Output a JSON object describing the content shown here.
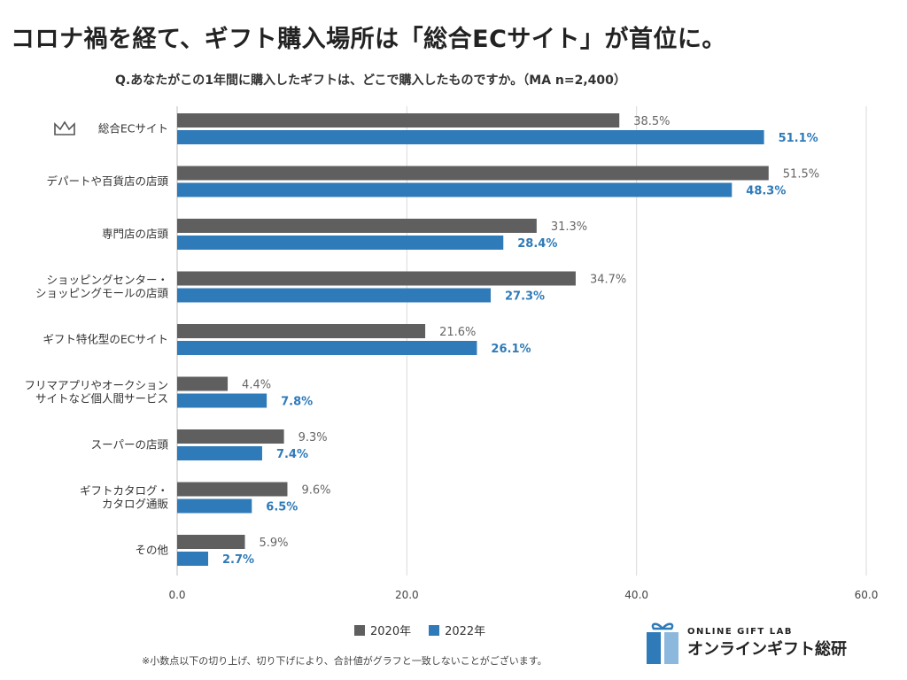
{
  "headline": "コロナ禍を経て、ギフト購入場所は「総合ECサイト」が首位に。",
  "chart_data": {
    "type": "bar",
    "orientation": "horizontal",
    "question": "Q.あなたがこの1年間に購入したギフトは、どこで購入したものですか。（MA n=2,400）",
    "categories": [
      [
        "総合ECサイト"
      ],
      [
        "デパートや百貨店の店頭"
      ],
      [
        "専門店の店頭"
      ],
      [
        "ショッピングセンター・",
        "ショッピングモールの店頭"
      ],
      [
        "ギフト特化型のECサイト"
      ],
      [
        "フリマアプリやオークション",
        "サイトなど個人間サービス"
      ],
      [
        "スーパーの店頭"
      ],
      [
        "ギフトカタログ・",
        "カタログ通販"
      ],
      [
        "その他"
      ]
    ],
    "series": [
      {
        "name": "2020年",
        "color": "#5f5f5f",
        "values": [
          38.5,
          51.5,
          31.3,
          34.7,
          21.6,
          4.4,
          9.3,
          9.6,
          5.9
        ],
        "labels": [
          "38.5%",
          "51.5%",
          "31.3%",
          "34.7%",
          "21.6%",
          "4.4%",
          "9.3%",
          "9.6%",
          "5.9%"
        ]
      },
      {
        "name": "2022年",
        "color": "#2f7ab8",
        "values": [
          51.1,
          48.3,
          28.4,
          27.3,
          26.1,
          7.8,
          7.4,
          6.5,
          2.7
        ],
        "labels": [
          "51.1%",
          "48.3%",
          "28.4%",
          "27.3%",
          "26.1%",
          "7.8%",
          "7.4%",
          "6.5%",
          "2.7%"
        ]
      }
    ],
    "xlim": [
      0,
      60
    ],
    "xticks": [
      0,
      20,
      40,
      60
    ],
    "xtick_labels": [
      "0.0",
      "20.0",
      "40.0",
      "60.0"
    ],
    "grid": true,
    "legend_position": "bottom-center",
    "highlight_icon": "crown-icon"
  },
  "footnote": "※小数点以下の切り上げ、切り下げにより、合計値がグラフと一致しないことがございます。",
  "brand": {
    "logo_icon": "gift-icon",
    "name_en": "ONLINE GIFT LAB",
    "name_jp": "オンラインギフト総研",
    "colors": [
      "#2f7ab8",
      "#8cb8dd"
    ]
  }
}
